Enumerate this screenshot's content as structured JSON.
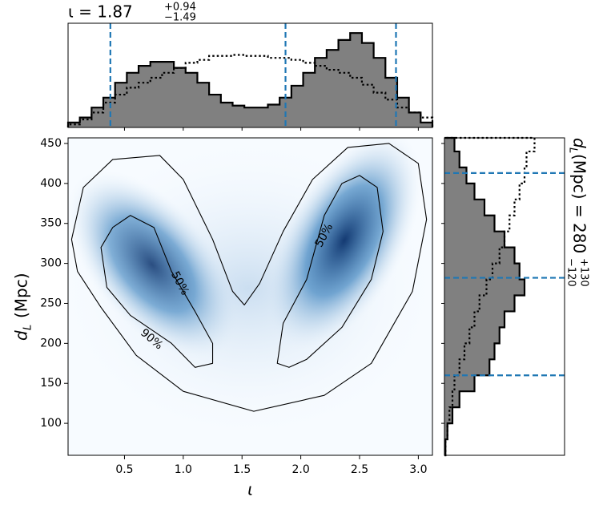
{
  "chart_data": [
    {
      "type": "histogram",
      "orientation": "vertical",
      "title": "ι = 1.87",
      "title_sup": "+0.94",
      "title_sub": "−1.49",
      "xlim": [
        0.02,
        3.12
      ],
      "ylim": [
        0,
        1
      ],
      "xticks": [
        0.5,
        1,
        1.5,
        2,
        2.5,
        3
      ],
      "bins": [
        0.02,
        0.12,
        0.22,
        0.32,
        0.42,
        0.52,
        0.62,
        0.72,
        0.82,
        0.92,
        1.02,
        1.12,
        1.22,
        1.32,
        1.42,
        1.52,
        1.62,
        1.72,
        1.82,
        1.92,
        2.02,
        2.12,
        2.22,
        2.32,
        2.42,
        2.52,
        2.62,
        2.72,
        2.82,
        2.92,
        3.02,
        3.12
      ],
      "series": [
        {
          "color": "#808080",
          "style": "filled",
          "values": [
            0.05,
            0.1,
            0.2,
            0.3,
            0.45,
            0.55,
            0.62,
            0.66,
            0.66,
            0.6,
            0.55,
            0.45,
            0.33,
            0.25,
            0.22,
            0.2,
            0.2,
            0.23,
            0.3,
            0.42,
            0.55,
            0.7,
            0.78,
            0.88,
            0.95,
            0.85,
            0.7,
            0.5,
            0.3,
            0.15,
            0.05
          ]
        },
        {
          "color": "#000000",
          "style": "dotted",
          "values": [
            0.03,
            0.08,
            0.15,
            0.25,
            0.33,
            0.4,
            0.45,
            0.5,
            0.55,
            0.6,
            0.65,
            0.68,
            0.72,
            0.72,
            0.73,
            0.72,
            0.72,
            0.7,
            0.7,
            0.68,
            0.65,
            0.62,
            0.58,
            0.55,
            0.5,
            0.43,
            0.35,
            0.28,
            0.2,
            0.15,
            0.1
          ]
        }
      ],
      "lines": [
        0.38,
        1.87,
        2.81
      ],
      "line_color": "#1f77b4"
    },
    {
      "type": "contour",
      "xlabel": "ι",
      "ylabel": "d",
      "ylabel_sub": "L",
      "ylabel_rest": "(Mpc)",
      "xlim": [
        0.02,
        3.12
      ],
      "ylim": [
        60,
        457
      ],
      "xticks": [
        {
          "value": 0.5,
          "label": "0.5"
        },
        {
          "value": 1,
          "label": "1.0"
        },
        {
          "value": 1.5,
          "label": "1.5"
        },
        {
          "value": 2,
          "label": "2.0"
        },
        {
          "value": 2.5,
          "label": "2.5"
        },
        {
          "value": 3,
          "label": "3.0"
        }
      ],
      "yticks": [
        100,
        150,
        200,
        250,
        300,
        350,
        400,
        450
      ],
      "series": [
        {
          "x": [
            0.05,
            0.15,
            0.4,
            0.8,
            1.0,
            1.25,
            1.42,
            1.52,
            1.65,
            1.85,
            2.1,
            2.4,
            2.75,
            3.0,
            3.07,
            2.95,
            2.6,
            2.2,
            1.6,
            1.0,
            0.6,
            0.3,
            0.1
          ],
          "y": [
            330,
            395,
            430,
            435,
            405,
            330,
            265,
            248,
            275,
            340,
            405,
            445,
            450,
            425,
            355,
            265,
            175,
            135,
            115,
            140,
            185,
            245,
            290
          ]
        },
        {
          "x": [
            0.3,
            0.4,
            0.55,
            0.75,
            0.9,
            1.1,
            1.25,
            1.25,
            1.1,
            0.9,
            0.55,
            0.35
          ],
          "y": [
            320,
            345,
            360,
            345,
            290,
            240,
            200,
            175,
            170,
            200,
            235,
            270
          ]
        },
        {
          "x": [
            1.8,
            1.85,
            2.05,
            2.2,
            2.35,
            2.5,
            2.65,
            2.7,
            2.6,
            2.35,
            2.05,
            1.9
          ],
          "y": [
            175,
            225,
            280,
            360,
            400,
            410,
            395,
            340,
            280,
            220,
            180,
            170
          ]
        }
      ],
      "contour_labels": [
        {
          "text": "50%",
          "x": 0.97,
          "y": 275,
          "angle": 62
        },
        {
          "text": "50%",
          "x": 2.2,
          "y": 335,
          "angle": -62
        },
        {
          "text": "90%",
          "x": 0.73,
          "y": 205,
          "angle": 40
        }
      ]
    },
    {
      "type": "histogram",
      "orientation": "horizontal",
      "title": "d",
      "title_sub_l": "L",
      "title_rest": " (Mpc) = 280",
      "title_sup": "+130",
      "title_sub": "−120",
      "ylim": [
        60,
        457
      ],
      "xlim": [
        0,
        1
      ],
      "bins": [
        60,
        80,
        100,
        120,
        140,
        160,
        180,
        200,
        220,
        240,
        260,
        280,
        300,
        320,
        340,
        360,
        380,
        400,
        420,
        440,
        457
      ],
      "series": [
        {
          "color": "#808080",
          "style": "filled",
          "values": [
            0.01,
            0.03,
            0.08,
            0.15,
            0.3,
            0.45,
            0.5,
            0.55,
            0.6,
            0.7,
            0.8,
            0.75,
            0.7,
            0.6,
            0.5,
            0.4,
            0.3,
            0.22,
            0.15,
            0.1
          ]
        },
        {
          "color": "#000000",
          "style": "dotted",
          "values": [
            0.01,
            0.03,
            0.05,
            0.08,
            0.1,
            0.15,
            0.2,
            0.25,
            0.3,
            0.35,
            0.42,
            0.48,
            0.55,
            0.6,
            0.65,
            0.7,
            0.75,
            0.8,
            0.82,
            0.9
          ]
        }
      ],
      "lines": [
        160,
        282,
        413
      ],
      "line_color": "#1f77b4"
    }
  ]
}
